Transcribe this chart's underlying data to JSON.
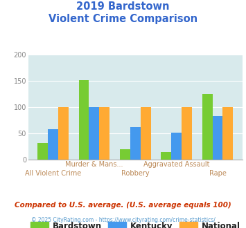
{
  "title_line1": "2019 Bardstown",
  "title_line2": "Violent Crime Comparison",
  "categories": [
    "All Violent Crime",
    "Murder & Mans...",
    "Robbery",
    "Aggravated Assault",
    "Rape"
  ],
  "bardstown": [
    32,
    152,
    20,
    15,
    125
  ],
  "kentucky": [
    58,
    100,
    62,
    52,
    83
  ],
  "national": [
    100,
    100,
    100,
    100,
    100
  ],
  "bardstown_color": "#77cc33",
  "kentucky_color": "#4499ee",
  "national_color": "#ffaa33",
  "bg_color": "#d8eaec",
  "ylim": [
    0,
    200
  ],
  "yticks": [
    0,
    50,
    100,
    150,
    200
  ],
  "title_color": "#3366cc",
  "label_color": "#bb8855",
  "footer_note": "Compared to U.S. average. (U.S. average equals 100)",
  "footer_credit": "© 2025 CityRating.com - https://www.cityrating.com/crime-statistics/",
  "legend_labels": [
    "Bardstown",
    "Kentucky",
    "National"
  ],
  "bar_width": 0.25
}
